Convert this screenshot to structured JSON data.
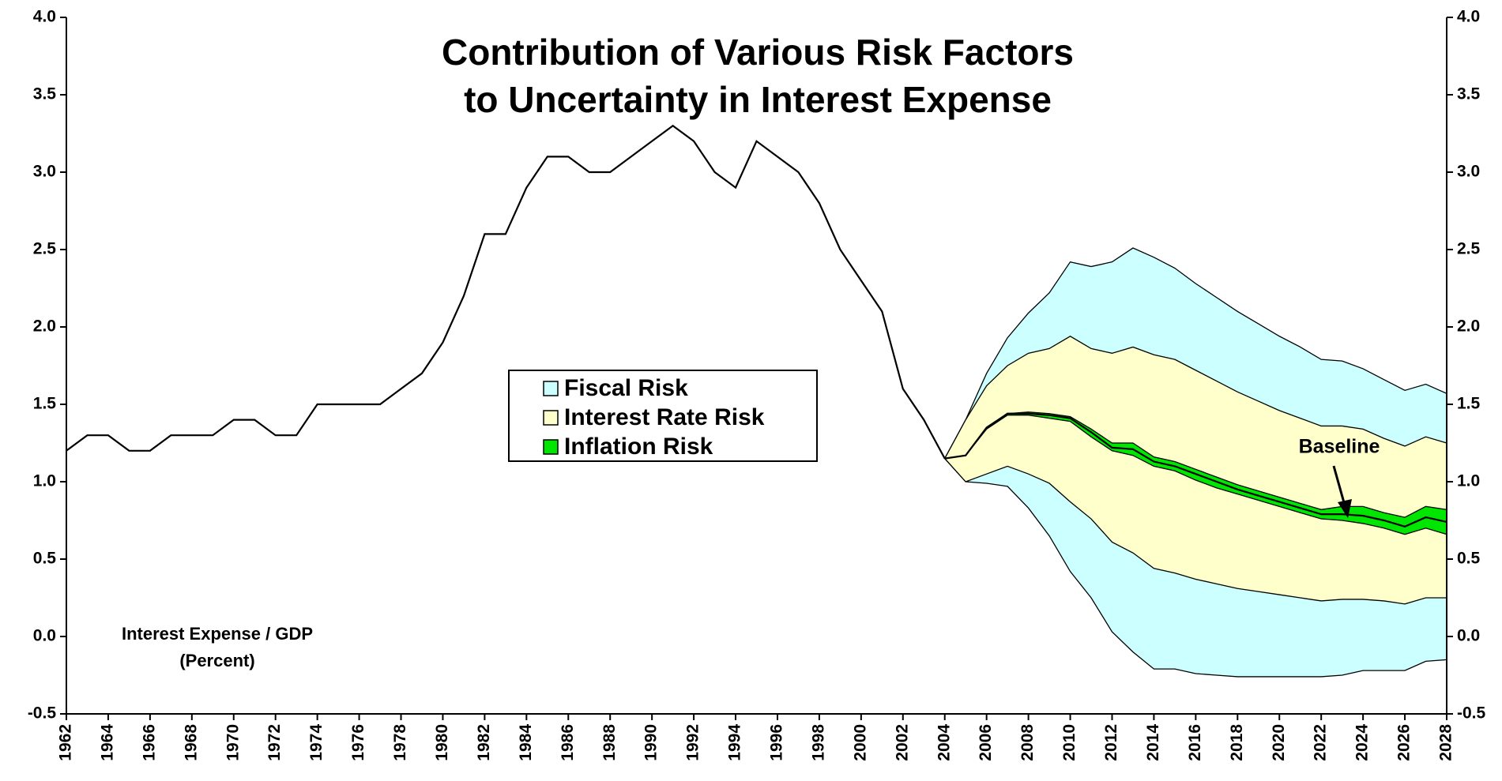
{
  "chart_data": {
    "type": "fan",
    "title": [
      "Contribution of Various Risk Factors",
      "to Uncertainty in Interest Expense"
    ],
    "annotations": [
      "Interest Expense / GDP",
      "(Percent)",
      "Baseline"
    ],
    "xlim": [
      1962,
      2028
    ],
    "xticks": [
      1962,
      1964,
      1966,
      1968,
      1970,
      1972,
      1974,
      1976,
      1978,
      1980,
      1982,
      1984,
      1986,
      1988,
      1990,
      1992,
      1994,
      1996,
      1998,
      2000,
      2002,
      2004,
      2006,
      2008,
      2010,
      2012,
      2014,
      2016,
      2018,
      2020,
      2022,
      2024,
      2026,
      2028
    ],
    "ylim": [
      -0.5,
      4.0
    ],
    "yticks": [
      {
        "value": -0.5,
        "label": "-0.5"
      },
      {
        "value": 0,
        "label": "0.0"
      },
      {
        "value": 0.5,
        "label": "0.5"
      },
      {
        "value": 1,
        "label": "1.0"
      },
      {
        "value": 1.5,
        "label": "1.5"
      },
      {
        "value": 2,
        "label": "2.0"
      },
      {
        "value": 2.5,
        "label": "2.5"
      },
      {
        "value": 3,
        "label": "3.0"
      },
      {
        "value": 3.5,
        "label": "3.5"
      },
      {
        "value": 4,
        "label": "4.0"
      }
    ],
    "y2lim": [
      -0.5,
      4.0
    ],
    "y2ticks": [
      {
        "value": -0.5,
        "label": "-0.5"
      },
      {
        "value": 0,
        "label": "0.0"
      },
      {
        "value": 0.5,
        "label": "0.5"
      },
      {
        "value": 1,
        "label": "1.0"
      },
      {
        "value": 1.5,
        "label": "1.5"
      },
      {
        "value": 2,
        "label": "2.0"
      },
      {
        "value": 2.5,
        "label": "2.5"
      },
      {
        "value": 3,
        "label": "3.0"
      },
      {
        "value": 3.5,
        "label": "3.5"
      },
      {
        "value": 4,
        "label": "4.0"
      }
    ],
    "history": {
      "color": "#000000",
      "x": [
        1962,
        1963,
        1964,
        1965,
        1966,
        1967,
        1968,
        1969,
        1970,
        1971,
        1972,
        1973,
        1974,
        1975,
        1976,
        1977,
        1978,
        1979,
        1980,
        1981,
        1982,
        1983,
        1984,
        1985,
        1986,
        1987,
        1988,
        1989,
        1990,
        1991,
        1992,
        1993,
        1994,
        1995,
        1996,
        1997,
        1998,
        1999,
        2000,
        2001,
        2002,
        2003,
        2004
      ],
      "values": [
        1.2,
        1.3,
        1.3,
        1.2,
        1.2,
        1.3,
        1.3,
        1.3,
        1.4,
        1.4,
        1.3,
        1.3,
        1.5,
        1.5,
        1.5,
        1.5,
        1.6,
        1.7,
        1.9,
        2.2,
        2.6,
        2.6,
        2.9,
        3.1,
        3.1,
        3.0,
        3.0,
        3.1,
        3.2,
        3.3,
        3.2,
        3.0,
        2.9,
        3.2,
        3.1,
        3.0,
        2.8,
        2.5,
        2.3,
        2.1,
        1.6,
        1.4,
        1.15
      ]
    },
    "series": [
      {
        "name": "Fiscal Risk",
        "color": "#ccffff",
        "x": [
          2004,
          2005,
          2006,
          2007,
          2008,
          2009,
          2010,
          2011,
          2012,
          2013,
          2014,
          2015,
          2016,
          2017,
          2018,
          2019,
          2020,
          2021,
          2022,
          2023,
          2024,
          2025,
          2026,
          2027,
          2028
        ],
        "upper": [
          1.15,
          1.4,
          1.7,
          1.93,
          2.09,
          2.22,
          2.42,
          2.39,
          2.42,
          2.51,
          2.45,
          2.38,
          2.28,
          2.19,
          2.1,
          2.02,
          1.94,
          1.87,
          1.79,
          1.78,
          1.73,
          1.66,
          1.59,
          1.63,
          1.57
        ],
        "lower": [
          1.15,
          1.0,
          0.99,
          0.97,
          0.83,
          0.65,
          0.42,
          0.25,
          0.03,
          -0.1,
          -0.21,
          -0.21,
          -0.24,
          -0.25,
          -0.26,
          -0.26,
          -0.26,
          -0.26,
          -0.26,
          -0.25,
          -0.22,
          -0.22,
          -0.22,
          -0.16,
          -0.15
        ]
      },
      {
        "name": "Interest Rate Risk",
        "color": "#ffffcc",
        "x": [
          2004,
          2005,
          2006,
          2007,
          2008,
          2009,
          2010,
          2011,
          2012,
          2013,
          2014,
          2015,
          2016,
          2017,
          2018,
          2019,
          2020,
          2021,
          2022,
          2023,
          2024,
          2025,
          2026,
          2027,
          2028
        ],
        "upper": [
          1.15,
          1.4,
          1.62,
          1.75,
          1.83,
          1.86,
          1.94,
          1.86,
          1.83,
          1.87,
          1.82,
          1.79,
          1.72,
          1.65,
          1.58,
          1.52,
          1.46,
          1.41,
          1.36,
          1.36,
          1.34,
          1.28,
          1.23,
          1.29,
          1.25
        ],
        "lower": [
          1.15,
          1.0,
          1.05,
          1.1,
          1.05,
          0.99,
          0.87,
          0.76,
          0.61,
          0.54,
          0.44,
          0.41,
          0.37,
          0.34,
          0.31,
          0.29,
          0.27,
          0.25,
          0.23,
          0.24,
          0.24,
          0.23,
          0.21,
          0.25,
          0.25
        ]
      },
      {
        "name": "Inflation Risk",
        "color": "#00e600",
        "x": [
          2004,
          2005,
          2006,
          2007,
          2008,
          2009,
          2010,
          2011,
          2012,
          2013,
          2014,
          2015,
          2016,
          2017,
          2018,
          2019,
          2020,
          2021,
          2022,
          2023,
          2024,
          2025,
          2026,
          2027,
          2028
        ],
        "upper": [
          1.15,
          1.17,
          1.35,
          1.44,
          1.45,
          1.44,
          1.42,
          1.34,
          1.25,
          1.25,
          1.16,
          1.13,
          1.08,
          1.03,
          0.98,
          0.94,
          0.9,
          0.86,
          0.82,
          0.84,
          0.84,
          0.8,
          0.77,
          0.84,
          0.82
        ],
        "lower": [
          1.15,
          1.17,
          1.34,
          1.43,
          1.43,
          1.41,
          1.39,
          1.29,
          1.2,
          1.17,
          1.1,
          1.07,
          1.01,
          0.96,
          0.92,
          0.88,
          0.84,
          0.8,
          0.76,
          0.75,
          0.73,
          0.7,
          0.66,
          0.7,
          0.66
        ]
      }
    ],
    "baseline": {
      "color": "#000000",
      "x": [
        2004,
        2005,
        2006,
        2007,
        2008,
        2009,
        2010,
        2011,
        2012,
        2013,
        2014,
        2015,
        2016,
        2017,
        2018,
        2019,
        2020,
        2021,
        2022,
        2023,
        2024,
        2025,
        2026,
        2027,
        2028
      ],
      "values": [
        1.15,
        1.17,
        1.35,
        1.44,
        1.44,
        1.43,
        1.41,
        1.32,
        1.22,
        1.21,
        1.13,
        1.1,
        1.05,
        1.0,
        0.95,
        0.91,
        0.87,
        0.83,
        0.79,
        0.79,
        0.78,
        0.75,
        0.71,
        0.77,
        0.74
      ]
    }
  }
}
